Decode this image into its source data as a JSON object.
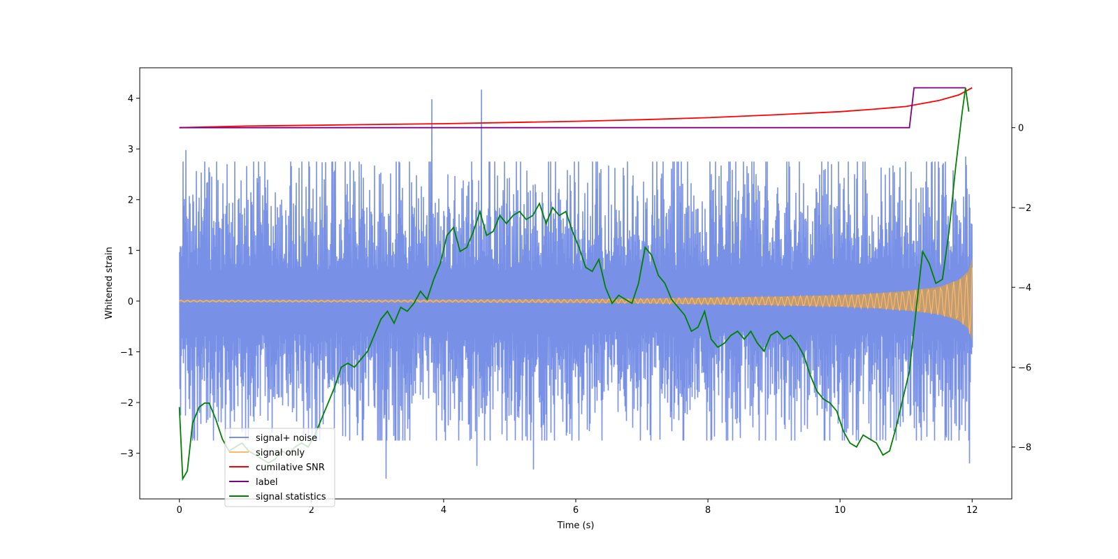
{
  "chart_data": {
    "type": "line",
    "title": "",
    "xlabel": "Time (s)",
    "ylabel": "Whitened strain",
    "ylabel_right": "",
    "xlim": [
      -0.6,
      12.6
    ],
    "ylim_left": [
      -3.9,
      4.6
    ],
    "ylim_right": [
      -9.3,
      1.5
    ],
    "x_ticks": [
      0,
      2,
      4,
      6,
      8,
      10,
      12
    ],
    "x_tick_labels": [
      "0",
      "2",
      "4",
      "6",
      "8",
      "10",
      "12"
    ],
    "y_ticks_left": [
      -3,
      -2,
      -1,
      0,
      1,
      2,
      3,
      4
    ],
    "y_tick_labels_left": [
      "−3",
      "−2",
      "−1",
      "0",
      "1",
      "2",
      "3",
      "4"
    ],
    "y_ticks_right": [
      -8,
      -6,
      -4,
      -2,
      0
    ],
    "y_tick_labels_right": [
      "−8",
      "−6",
      "−4",
      "−2",
      "0"
    ],
    "legend_position": "lower-left",
    "series": [
      {
        "name": "signal+ noise",
        "axis": "left",
        "color": "#7891e6",
        "kind": "noise",
        "x_range": [
          0,
          12
        ],
        "amplitude_sigma": 0.95,
        "spikes": [
          {
            "x": 3.82,
            "y": 3.98
          },
          {
            "x": 4.57,
            "y": 4.17
          },
          {
            "x": 3.12,
            "y": -3.5
          },
          {
            "x": 4.5,
            "y": -3.25
          },
          {
            "x": 5.35,
            "y": -3.32
          },
          {
            "x": 0.1,
            "y": 2.98
          },
          {
            "x": 11.95,
            "y": -3.2
          },
          {
            "x": 11.9,
            "y": 2.85
          }
        ]
      },
      {
        "name": "signal only",
        "axis": "left",
        "color": "#ffb86b",
        "fill_color": "#bf9c72",
        "kind": "chirp",
        "x_range": [
          0,
          12
        ],
        "envelope": {
          "x": [
            0,
            2,
            4,
            6,
            7,
            8,
            9,
            10,
            10.5,
            11,
            11.5,
            11.8,
            11.95,
            12
          ],
          "y": [
            0.02,
            0.02,
            0.025,
            0.035,
            0.05,
            0.07,
            0.09,
            0.12,
            0.15,
            0.2,
            0.28,
            0.42,
            0.6,
            0.85
          ]
        }
      },
      {
        "name": "cumilative SNR",
        "axis": "right",
        "color": "#ff0000",
        "kind": "line",
        "x": [
          0,
          1,
          2,
          3,
          4,
          5,
          6,
          7,
          8,
          9,
          10,
          10.5,
          11,
          11.5,
          11.8,
          12
        ],
        "y": [
          0,
          0.04,
          0.06,
          0.08,
          0.1,
          0.13,
          0.16,
          0.2,
          0.25,
          0.32,
          0.4,
          0.46,
          0.53,
          0.68,
          0.82,
          1.0
        ]
      },
      {
        "name": "label",
        "axis": "right",
        "color": "#800080",
        "kind": "line",
        "x": [
          0,
          11.05,
          11.12,
          11.9
        ],
        "y": [
          0,
          0,
          1,
          1
        ]
      },
      {
        "name": "signal statistics",
        "axis": "right",
        "color": "#008000",
        "kind": "line",
        "x": [
          0,
          0.05,
          0.12,
          0.2,
          0.3,
          0.38,
          0.45,
          0.55,
          0.65,
          0.75,
          0.85,
          0.95,
          1.05,
          1.15,
          1.25,
          1.35,
          1.45,
          1.55,
          1.65,
          1.75,
          1.85,
          1.95,
          2.05,
          2.15,
          2.25,
          2.35,
          2.45,
          2.55,
          2.65,
          2.75,
          2.85,
          2.95,
          3.05,
          3.15,
          3.25,
          3.35,
          3.45,
          3.55,
          3.65,
          3.75,
          3.85,
          3.95,
          4.05,
          4.15,
          4.25,
          4.35,
          4.45,
          4.55,
          4.65,
          4.75,
          4.85,
          4.95,
          5.05,
          5.15,
          5.25,
          5.35,
          5.45,
          5.55,
          5.65,
          5.75,
          5.85,
          5.95,
          6.05,
          6.15,
          6.25,
          6.35,
          6.45,
          6.55,
          6.65,
          6.75,
          6.85,
          6.95,
          7.05,
          7.15,
          7.25,
          7.35,
          7.45,
          7.55,
          7.65,
          7.75,
          7.85,
          7.95,
          8.05,
          8.15,
          8.25,
          8.35,
          8.45,
          8.55,
          8.65,
          8.75,
          8.85,
          8.95,
          9.05,
          9.15,
          9.25,
          9.35,
          9.45,
          9.55,
          9.65,
          9.75,
          9.85,
          9.95,
          10.05,
          10.15,
          10.25,
          10.35,
          10.45,
          10.55,
          10.65,
          10.75,
          10.85,
          10.95,
          11.05,
          11.15,
          11.25,
          11.35,
          11.45,
          11.55,
          11.65,
          11.75,
          11.85,
          11.9,
          11.95
        ],
        "y": [
          -7.0,
          -8.8,
          -8.6,
          -7.4,
          -7.0,
          -6.9,
          -6.9,
          -7.3,
          -7.8,
          -8.1,
          -8.0,
          -7.9,
          -8.1,
          -8.2,
          -8.3,
          -8.4,
          -8.3,
          -8.1,
          -8.2,
          -8.0,
          -7.9,
          -8.0,
          -7.7,
          -7.3,
          -6.9,
          -6.5,
          -6.0,
          -5.9,
          -6.0,
          -5.8,
          -5.6,
          -5.2,
          -4.8,
          -4.6,
          -4.9,
          -4.5,
          -4.6,
          -4.4,
          -4.1,
          -4.3,
          -3.8,
          -3.4,
          -2.7,
          -2.5,
          -3.1,
          -3.0,
          -2.6,
          -2.1,
          -2.7,
          -2.6,
          -2.2,
          -2.4,
          -2.2,
          -2.1,
          -2.3,
          -2.2,
          -1.9,
          -2.4,
          -2.0,
          -2.2,
          -2.1,
          -2.6,
          -3.0,
          -3.5,
          -3.6,
          -3.3,
          -4.0,
          -4.4,
          -4.2,
          -4.3,
          -4.4,
          -3.9,
          -3.0,
          -3.2,
          -3.7,
          -3.9,
          -4.3,
          -4.5,
          -4.7,
          -5.1,
          -5.0,
          -4.6,
          -5.3,
          -5.5,
          -5.4,
          -5.2,
          -5.1,
          -5.3,
          -5.1,
          -5.4,
          -5.6,
          -5.2,
          -5.1,
          -5.3,
          -5.2,
          -5.4,
          -5.7,
          -6.2,
          -6.6,
          -6.8,
          -6.9,
          -7.1,
          -7.6,
          -7.9,
          -8.0,
          -7.7,
          -7.8,
          -7.9,
          -8.2,
          -8.1,
          -7.5,
          -6.8,
          -6.1,
          -4.6,
          -3.1,
          -3.4,
          -3.9,
          -3.8,
          -2.6,
          -1.0,
          0.4,
          1.0,
          0.4
        ]
      }
    ]
  }
}
